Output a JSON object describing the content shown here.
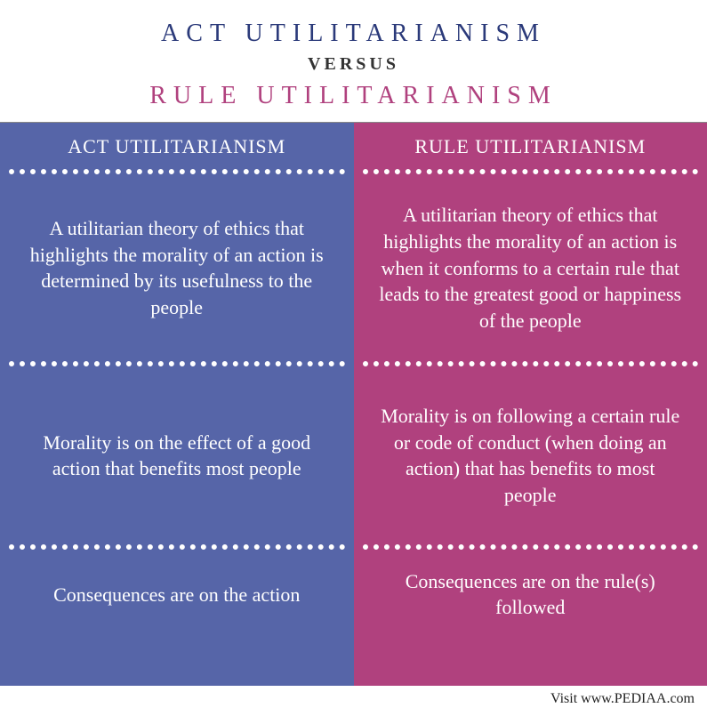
{
  "header": {
    "title_left": "ACT UTILITARIANISM",
    "title_left_color": "#2b3a7a",
    "versus": "VERSUS",
    "title_right": "RULE UTILITARIANISM",
    "title_right_color": "#b0417e"
  },
  "columns": {
    "left": {
      "bg_color": "#5665a8",
      "header": "ACT UTILITARIANISM",
      "rows": [
        "A utilitarian theory of ethics that highlights the morality of an action is determined by its usefulness to the people",
        "Morality is on the effect of a good action that benefits most people",
        "Consequences are on the action"
      ]
    },
    "right": {
      "bg_color": "#b0417e",
      "header": "RULE UTILITARIANISM",
      "rows": [
        "A utilitarian theory of ethics that highlights the morality of an action is when it conforms to a certain rule that leads to the greatest good or happiness of the people",
        "Morality is on following a certain rule or code of conduct (when doing an action) that has benefits to most people",
        "Consequences are on the rule(s) followed"
      ]
    }
  },
  "footer": {
    "text": "Visit www.PEDIAA.com"
  },
  "style": {
    "divider_color": "#ffffff",
    "text_color": "#ffffff"
  }
}
